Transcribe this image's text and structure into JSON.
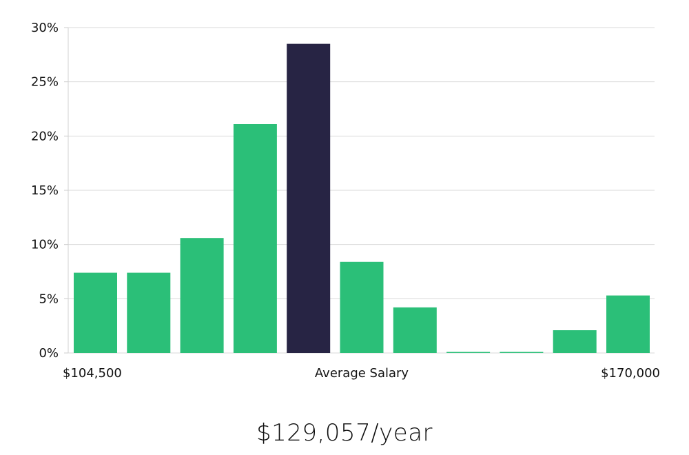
{
  "chart_data": {
    "type": "bar",
    "title": "",
    "xlabel": "Average Salary",
    "ylabel": "",
    "x_start_label": "$104,500",
    "x_end_label": "$170,000",
    "ylim": [
      0,
      30
    ],
    "yticks": [
      "0%",
      "5%",
      "10%",
      "15%",
      "20%",
      "25%",
      "30%"
    ],
    "ytick_values": [
      0,
      5,
      10,
      15,
      20,
      25,
      30
    ],
    "values": [
      7.4,
      7.4,
      10.6,
      21.1,
      28.5,
      8.4,
      4.2,
      0.05,
      0.05,
      2.1,
      5.3
    ],
    "highlight_index": 4,
    "colors": {
      "bar": "#2bbf78",
      "highlight": "#272444",
      "grid": "#d9d9d9"
    }
  },
  "summary": {
    "salary_text": "$129,057/year"
  }
}
